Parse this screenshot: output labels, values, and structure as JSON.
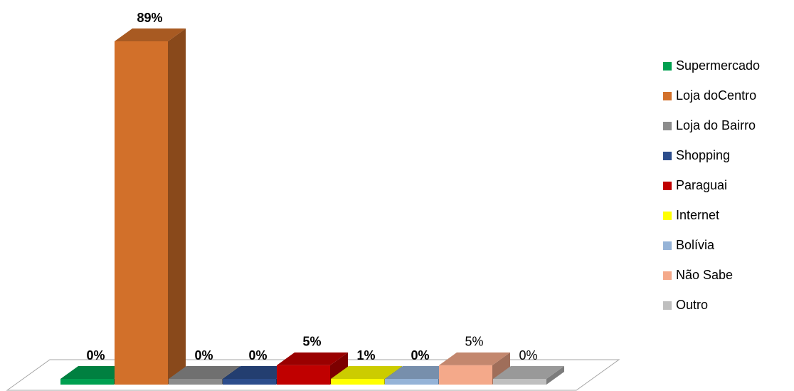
{
  "chart_data": {
    "type": "bar3d",
    "categories": [
      "Supermercado",
      "Loja doCentro",
      "Loja do Bairro",
      "Shopping",
      "Paraguai",
      "Internet",
      "Bolívia",
      "Não Sabe",
      "Outro"
    ],
    "values": [
      0,
      89,
      0,
      0,
      5,
      1,
      0,
      5,
      0
    ],
    "value_labels": [
      "0%",
      "89%",
      "0%",
      "0%",
      "5%",
      "1%",
      "0%",
      "5%",
      "0%"
    ],
    "colors": [
      "#00a050",
      "#d2702a",
      "#8c8c8c",
      "#2c4d8c",
      "#c00000",
      "#ffff00",
      "#95b3d7",
      "#f4a98a",
      "#bfbfbf"
    ],
    "legend": "right"
  }
}
